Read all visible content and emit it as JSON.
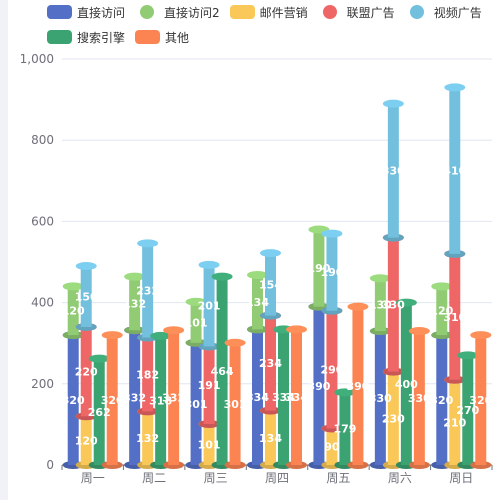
{
  "legend": [
    {
      "name": "直接访问",
      "color": "#5470c6",
      "shape": "rect"
    },
    {
      "name": "直接访问2",
      "color": "#91cc75",
      "shape": "circle"
    },
    {
      "name": "邮件营销",
      "color": "#fac858",
      "shape": "rect"
    },
    {
      "name": "联盟广告",
      "color": "#ee6666",
      "shape": "circle"
    },
    {
      "name": "视频广告",
      "color": "#73c0de",
      "shape": "circle"
    },
    {
      "name": "搜索引擎",
      "color": "#3ba272",
      "shape": "rect"
    },
    {
      "name": "其他",
      "color": "#fc8452",
      "shape": "rect"
    }
  ],
  "chart_data": {
    "type": "bar",
    "categories": [
      "周一",
      "周二",
      "周三",
      "周四",
      "周五",
      "周六",
      "周日"
    ],
    "ylim": [
      0,
      1000
    ],
    "yticks": [
      0,
      200,
      400,
      600,
      800,
      1000
    ],
    "yticklabels": [
      "0",
      "200",
      "400",
      "600",
      "800",
      "1,000"
    ],
    "grid": true,
    "legend_position": "top",
    "series": [
      {
        "name": "直接访问",
        "color": "#5470c6",
        "stack": "A",
        "values": [
          320,
          332,
          301,
          334,
          390,
          330,
          320
        ]
      },
      {
        "name": "直接访问2",
        "color": "#91cc75",
        "stack": "A",
        "values": [
          120,
          132,
          101,
          134,
          190,
          130,
          120
        ]
      },
      {
        "name": "邮件营销",
        "color": "#fac858",
        "stack": "B",
        "values": [
          120,
          132,
          101,
          134,
          90,
          230,
          210
        ]
      },
      {
        "name": "联盟广告",
        "color": "#ee6666",
        "stack": "B",
        "values": [
          220,
          182,
          191,
          234,
          290,
          330,
          310
        ]
      },
      {
        "name": "视频广告",
        "color": "#73c0de",
        "stack": "B",
        "values": [
          150,
          232,
          201,
          154,
          190,
          330,
          410
        ]
      },
      {
        "name": "搜索引擎",
        "color": "#3ba272",
        "stack": "C",
        "values": [
          262,
          318,
          464,
          334,
          179,
          400,
          270
        ]
      },
      {
        "name": "其他",
        "color": "#fc8452",
        "stack": "D",
        "values": [
          320,
          332,
          301,
          334,
          390,
          330,
          320
        ]
      }
    ]
  }
}
